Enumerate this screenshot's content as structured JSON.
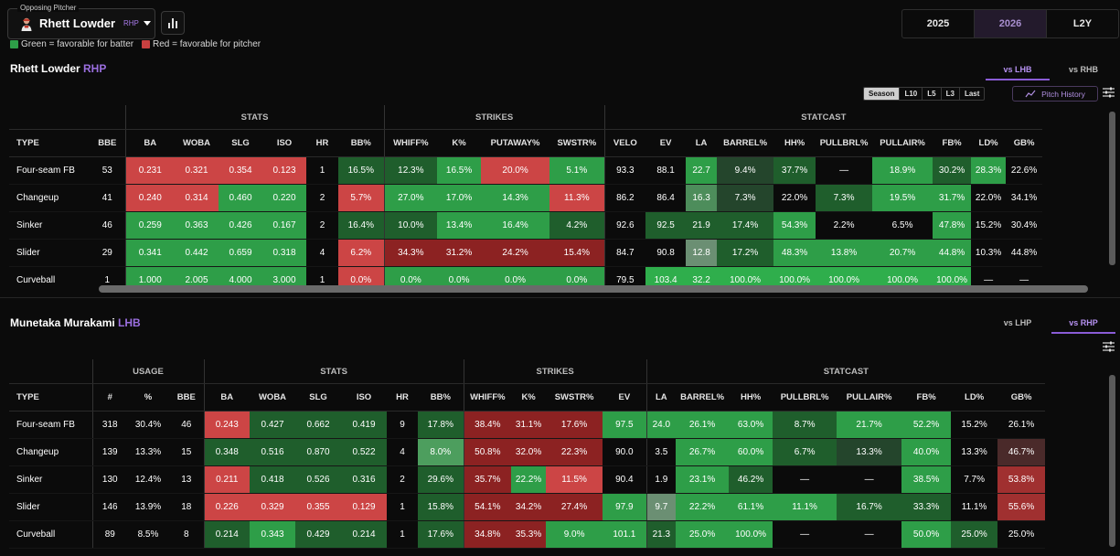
{
  "selector": {
    "legend": "Opposing Pitcher",
    "name": "Rhett Lowder",
    "hand": "RHP"
  },
  "legend": {
    "green": "Green = favorable for batter",
    "red": "Red = favorable for pitcher"
  },
  "years": [
    {
      "label": "2025"
    },
    {
      "label": "2026",
      "active": true
    },
    {
      "label": "L2Y"
    }
  ],
  "colors": {
    "accent": "#8a5cd6",
    "green": "#2e9e48",
    "red": "#c94040"
  },
  "pitcher": {
    "name": "Rhett Lowder",
    "hand": "RHP",
    "splits": [
      {
        "label": "vs LHB",
        "active": true
      },
      {
        "label": "vs RHB"
      }
    ],
    "filters": [
      {
        "label": "Season",
        "active": true
      },
      {
        "label": "L10"
      },
      {
        "label": "L5"
      },
      {
        "label": "L3"
      },
      {
        "label": "Last"
      }
    ],
    "pitch_history": "Pitch History",
    "groups": [
      {
        "label": "",
        "span": 2
      },
      {
        "label": "STATS",
        "span": 6
      },
      {
        "label": "STRIKES",
        "span": 4
      },
      {
        "label": "STATCAST",
        "span": 11
      }
    ],
    "headers": [
      "TYPE",
      "BBE",
      "BA",
      "WOBA",
      "SLG",
      "ISO",
      "HR",
      "BB%",
      "WHIFF%",
      "K%",
      "PUTAWAY%",
      "SWSTR%",
      "VELO",
      "EV",
      "LA",
      "BARREL%",
      "HH%",
      "PULLBRL%",
      "PULLAIR%",
      "FB%",
      "LD%",
      "GB%"
    ],
    "rows": [
      {
        "cells": [
          "Four-seam FB",
          "53",
          "0.231",
          "0.321",
          "0.354",
          "0.123",
          "1",
          "16.5%",
          "12.3%",
          "16.5%",
          "20.0%",
          "5.1%",
          "93.3",
          "88.1",
          "22.7",
          "9.4%",
          "37.7%",
          "—",
          "18.9%",
          "30.2%",
          "28.3%",
          "22.6%"
        ],
        "colors": [
          "",
          "",
          "#cc4545",
          "#cc4545",
          "#cc4545",
          "#cc4545",
          "",
          "#1f5e2c",
          "#1f5e2c",
          "#2e9e48",
          "#cc4545",
          "#2e9e48",
          "",
          "",
          "#2e9e48",
          "#24452c",
          "#1f5e2c",
          "",
          "#2e9e48",
          "#1f5e2c",
          "#2e9e48",
          ""
        ]
      },
      {
        "cells": [
          "Changeup",
          "41",
          "0.240",
          "0.314",
          "0.460",
          "0.220",
          "2",
          "5.7%",
          "27.0%",
          "17.0%",
          "14.3%",
          "11.3%",
          "86.2",
          "86.4",
          "16.3",
          "7.3%",
          "22.0%",
          "7.3%",
          "19.5%",
          "31.7%",
          "22.0%",
          "34.1%"
        ],
        "colors": [
          "",
          "",
          "#cc4545",
          "#cc4545",
          "#2e9e48",
          "#2e9e48",
          "",
          "#cc4545",
          "#2e9e48",
          "#2e9e48",
          "#2e9e48",
          "#cc4545",
          "",
          "",
          "#4d8d5b",
          "#24452c",
          "",
          "#1f5e2c",
          "#2e9e48",
          "#2e9e48",
          "",
          ""
        ]
      },
      {
        "cells": [
          "Sinker",
          "46",
          "0.259",
          "0.363",
          "0.426",
          "0.167",
          "2",
          "16.4%",
          "10.0%",
          "13.4%",
          "16.4%",
          "4.2%",
          "92.6",
          "92.5",
          "21.9",
          "17.4%",
          "54.3%",
          "2.2%",
          "6.5%",
          "47.8%",
          "15.2%",
          "30.4%"
        ],
        "colors": [
          "",
          "",
          "#2e9e48",
          "#2e9e48",
          "#2e9e48",
          "#2e9e48",
          "",
          "#1f5e2c",
          "#1f5e2c",
          "#2e9e48",
          "#2e9e48",
          "#1f5e2c",
          "",
          "#1f5e2c",
          "#1f5e2c",
          "#1f5e2c",
          "#2e9e48",
          "",
          "",
          "#2e9e48",
          "",
          ""
        ]
      },
      {
        "cells": [
          "Slider",
          "29",
          "0.341",
          "0.442",
          "0.659",
          "0.318",
          "4",
          "6.2%",
          "34.3%",
          "31.2%",
          "24.2%",
          "15.4%",
          "84.7",
          "90.8",
          "12.8",
          "17.2%",
          "48.3%",
          "13.8%",
          "20.7%",
          "44.8%",
          "10.3%",
          "44.8%"
        ],
        "colors": [
          "",
          "",
          "#2e9e48",
          "#2e9e48",
          "#2e9e48",
          "#2e9e48",
          "",
          "#cc4545",
          "#8c2222",
          "#8c2222",
          "#8c2222",
          "#8c2222",
          "",
          "",
          "#6b8f73",
          "#1f5e2c",
          "#2e9e48",
          "#2e9e48",
          "#2e9e48",
          "#2e9e48",
          "",
          ""
        ]
      },
      {
        "cells": [
          "Curveball",
          "1",
          "1.000",
          "2.005",
          "4.000",
          "3.000",
          "1",
          "0.0%",
          "0.0%",
          "0.0%",
          "0.0%",
          "0.0%",
          "79.5",
          "103.4",
          "32.2",
          "100.0%",
          "100.0%",
          "100.0%",
          "100.0%",
          "100.0%",
          "—",
          "—"
        ],
        "colors": [
          "",
          "",
          "#2e9e48",
          "#2e9e48",
          "#2e9e48",
          "#2e9e48",
          "",
          "#cc4545",
          "#2e9e48",
          "#2e9e48",
          "#2e9e48",
          "#2e9e48",
          "",
          "#2fae4c",
          "#2fae4c",
          "#2fae4c",
          "#2fae4c",
          "#2fae4c",
          "#2fae4c",
          "#2fae4c",
          "",
          ""
        ]
      }
    ]
  },
  "batter": {
    "name": "Munetaka Murakami",
    "hand": "LHB",
    "splits": [
      {
        "label": "vs LHP"
      },
      {
        "label": "vs RHP",
        "active": true
      }
    ],
    "groups": [
      {
        "label": "",
        "span": 1
      },
      {
        "label": "USAGE",
        "span": 3
      },
      {
        "label": "STATS",
        "span": 6
      },
      {
        "label": "STRIKES",
        "span": 4
      },
      {
        "label": "STATCAST",
        "span": 9
      }
    ],
    "headers": [
      "TYPE",
      "#",
      "%",
      "BBE",
      "BA",
      "WOBA",
      "SLG",
      "ISO",
      "HR",
      "BB%",
      "WHIFF%",
      "K%",
      "SWSTR%",
      "EV",
      "LA",
      "BARREL%",
      "HH%",
      "PULLBRL%",
      "PULLAIR%",
      "FB%",
      "LD%",
      "GB%"
    ],
    "rows": [
      {
        "cells": [
          "Four-seam FB",
          "318",
          "30.4%",
          "46",
          "0.243",
          "0.427",
          "0.662",
          "0.419",
          "9",
          "17.8%",
          "38.4%",
          "31.1%",
          "17.6%",
          "97.5",
          "24.0",
          "26.1%",
          "63.0%",
          "8.7%",
          "21.7%",
          "52.2%",
          "15.2%",
          "26.1%"
        ],
        "colors": [
          "",
          "",
          "",
          "",
          "#cc4545",
          "#1f5e2c",
          "#1f5e2c",
          "#1f5e2c",
          "",
          "#1f5e2c",
          "#8c2222",
          "#8c2222",
          "#8c2222",
          "#2e9e48",
          "#2e9e48",
          "#2e9e48",
          "#2e9e48",
          "#1f5e2c",
          "#2e9e48",
          "#2e9e48",
          "",
          ""
        ]
      },
      {
        "cells": [
          "Changeup",
          "139",
          "13.3%",
          "15",
          "0.348",
          "0.516",
          "0.870",
          "0.522",
          "4",
          "8.0%",
          "50.8%",
          "32.0%",
          "22.3%",
          "90.0",
          "3.5",
          "26.7%",
          "60.0%",
          "6.7%",
          "13.3%",
          "40.0%",
          "13.3%",
          "46.7%"
        ],
        "colors": [
          "",
          "",
          "",
          "",
          "#1f5e2c",
          "#1f5e2c",
          "#1f5e2c",
          "#1f5e2c",
          "",
          "#4d9e5e",
          "#8c2222",
          "#8c2222",
          "#8c2222",
          "",
          "",
          "#2e9e48",
          "#2e9e48",
          "#1f5e2c",
          "#24452c",
          "#2e9e48",
          "",
          "#4a2a2a"
        ]
      },
      {
        "cells": [
          "Sinker",
          "130",
          "12.4%",
          "13",
          "0.211",
          "0.418",
          "0.526",
          "0.316",
          "2",
          "29.6%",
          "35.7%",
          "22.2%",
          "11.5%",
          "90.4",
          "1.9",
          "23.1%",
          "46.2%",
          "—",
          "—",
          "38.5%",
          "7.7%",
          "53.8%"
        ],
        "colors": [
          "",
          "",
          "",
          "",
          "#cc4545",
          "#1f5e2c",
          "#1f5e2c",
          "#1f5e2c",
          "",
          "#1f5e2c",
          "#8c2222",
          "#2e9e48",
          "#cc4545",
          "",
          "",
          "#2e9e48",
          "#1f5e2c",
          "",
          "",
          "#2e9e48",
          "",
          "#a03030"
        ]
      },
      {
        "cells": [
          "Slider",
          "146",
          "13.9%",
          "18",
          "0.226",
          "0.329",
          "0.355",
          "0.129",
          "1",
          "15.8%",
          "54.1%",
          "34.2%",
          "27.4%",
          "97.9",
          "9.7",
          "22.2%",
          "61.1%",
          "11.1%",
          "16.7%",
          "33.3%",
          "11.1%",
          "55.6%"
        ],
        "colors": [
          "",
          "",
          "",
          "",
          "#cc4545",
          "#cc4545",
          "#cc4545",
          "#cc4545",
          "",
          "#1f5e2c",
          "#8c2222",
          "#8c2222",
          "#8c2222",
          "#2e9e48",
          "#6b8f73",
          "#2e9e48",
          "#2e9e48",
          "#2e9e48",
          "#1f5e2c",
          "#1f5e2c",
          "",
          "#a03030"
        ]
      },
      {
        "cells": [
          "Curveball",
          "89",
          "8.5%",
          "8",
          "0.214",
          "0.343",
          "0.429",
          "0.214",
          "1",
          "17.6%",
          "34.8%",
          "35.3%",
          "9.0%",
          "101.1",
          "21.3",
          "25.0%",
          "100.0%",
          "—",
          "—",
          "50.0%",
          "25.0%",
          "25.0%"
        ],
        "colors": [
          "",
          "",
          "",
          "",
          "#1f5e2c",
          "#2e9e48",
          "#1f5e2c",
          "#1f5e2c",
          "",
          "#1f5e2c",
          "#8c2222",
          "#8c2222",
          "#2e9e48",
          "#2e9e48",
          "#1f5e2c",
          "#2e9e48",
          "#2e9e48",
          "",
          "",
          "#2e9e48",
          "#1f5e2c",
          ""
        ]
      }
    ]
  }
}
